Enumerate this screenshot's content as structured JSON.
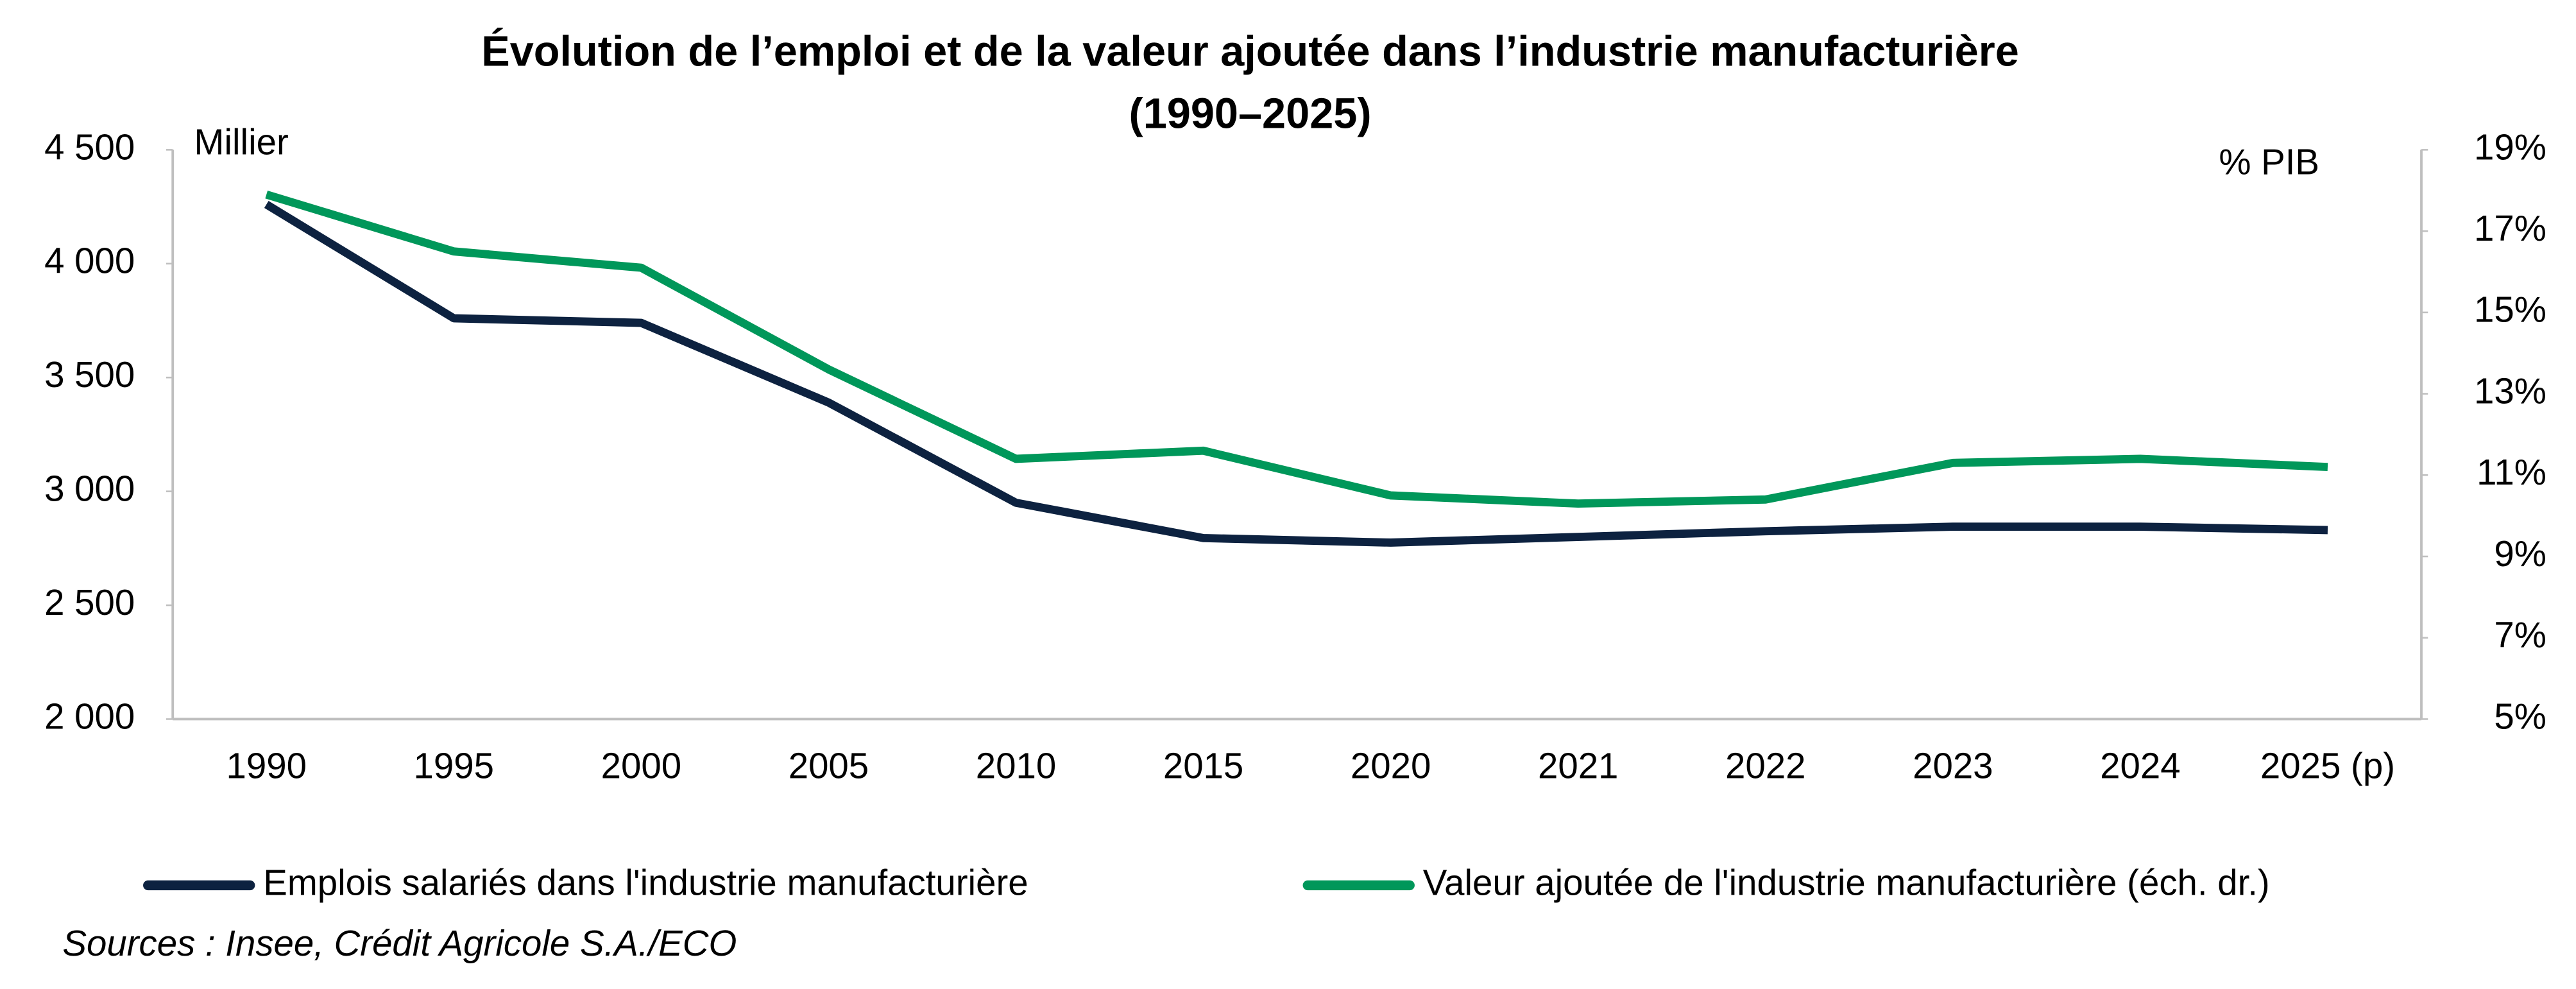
{
  "chart_data": {
    "type": "line",
    "title_lines": [
      "Évolution de l’emploi et de la valeur ajoutée dans l’industrie manufacturière",
      "(1990–2025)"
    ],
    "y_unit_label": "Millier",
    "y2_unit_label": "% PIB",
    "source": "Sources : Insee, Crédit Agricole S.A./ECO",
    "categories": [
      "1990",
      "1995",
      "2000",
      "2005",
      "2010",
      "2015",
      "2020",
      "2021",
      "2022",
      "2023",
      "2024",
      "2025 (p)"
    ],
    "series": [
      {
        "name": "Emplois salariés dans l'industrie manufacturière",
        "color": "#0d2240",
        "values": [
          4260,
          3760,
          3740,
          3390,
          2950,
          2795,
          2775,
          2800,
          2825,
          2845,
          2845,
          2830
        ]
      },
      {
        "name": "Valeur ajoutée de l'industrie manufacturière (éch. dr.)",
        "color": "#00975a",
        "axis": "y2",
        "values": [
          17.9,
          16.5,
          16.1,
          13.6,
          11.4,
          11.6,
          10.5,
          10.3,
          10.4,
          11.3,
          11.4,
          11.2
        ]
      }
    ],
    "ylim": [
      2000,
      4500
    ],
    "yticks": [
      {
        "value": 2000,
        "label": "2 000"
      },
      {
        "value": 2500,
        "label": "2 500"
      },
      {
        "value": 3000,
        "label": "3 000"
      },
      {
        "value": 3500,
        "label": "3 500"
      },
      {
        "value": 4000,
        "label": "4 000"
      },
      {
        "value": 4500,
        "label": "4 500"
      }
    ],
    "y2lim": [
      5,
      19
    ],
    "y2ticks": [
      {
        "value": 5,
        "label": "5%"
      },
      {
        "value": 7,
        "label": "7%"
      },
      {
        "value": 9,
        "label": "9%"
      },
      {
        "value": 11,
        "label": "11%"
      },
      {
        "value": 13,
        "label": "13%"
      },
      {
        "value": 15,
        "label": "15%"
      },
      {
        "value": 17,
        "label": "17%"
      },
      {
        "value": 19,
        "label": "19%"
      }
    ],
    "grid": false,
    "legend": "bottom"
  }
}
